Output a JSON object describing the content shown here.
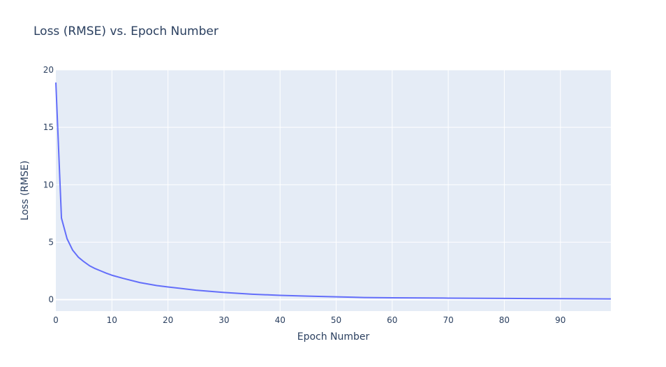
{
  "chart_data": {
    "type": "line",
    "title": "Loss (RMSE) vs. Epoch Number",
    "xlabel": "Epoch Number",
    "ylabel": "Loss (RMSE)",
    "xlim": [
      0,
      99
    ],
    "ylim": [
      -1,
      20
    ],
    "x_ticks": [
      0,
      10,
      20,
      30,
      40,
      50,
      60,
      70,
      80,
      90
    ],
    "y_ticks": [
      0,
      5,
      10,
      15,
      20
    ],
    "grid": true,
    "plot_background": "#e5ecf6",
    "series": [
      {
        "name": "Loss (RMSE)",
        "color": "#636efa",
        "x": [
          0,
          1,
          2,
          3,
          4,
          5,
          6,
          7,
          8,
          9,
          10,
          12,
          15,
          18,
          20,
          25,
          30,
          35,
          40,
          45,
          50,
          55,
          60,
          70,
          80,
          90,
          99
        ],
        "y": [
          18.9,
          7.1,
          5.3,
          4.3,
          3.7,
          3.3,
          2.95,
          2.7,
          2.5,
          2.3,
          2.12,
          1.85,
          1.48,
          1.22,
          1.1,
          0.82,
          0.62,
          0.47,
          0.37,
          0.3,
          0.24,
          0.18,
          0.16,
          0.13,
          0.1,
          0.08,
          0.06
        ]
      }
    ]
  }
}
